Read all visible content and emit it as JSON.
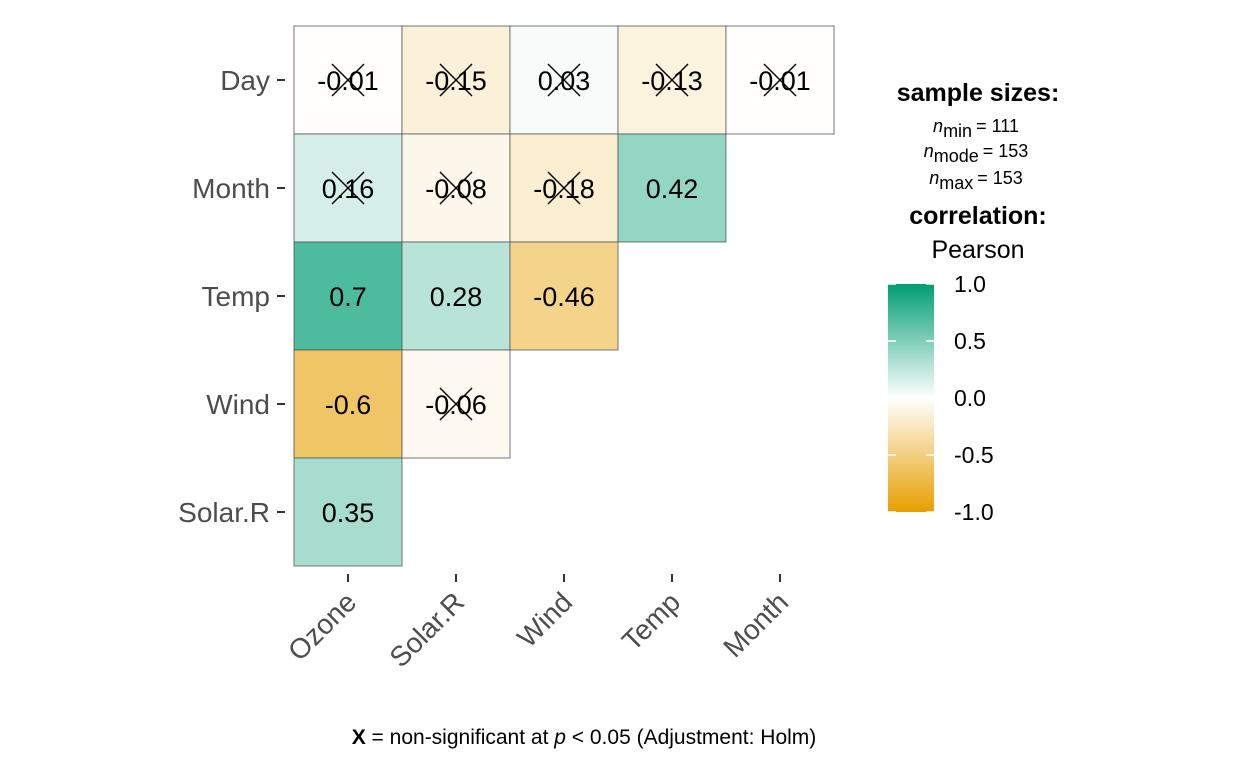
{
  "chart_data": {
    "type": "heatmap",
    "x_categories": [
      "Ozone",
      "Solar.R",
      "Wind",
      "Temp",
      "Month"
    ],
    "y_categories": [
      "Day",
      "Month",
      "Temp",
      "Wind",
      "Solar.R"
    ],
    "cells": [
      {
        "x": "Ozone",
        "y": "Day",
        "value": -0.01,
        "label": "-0.01",
        "non_significant": true
      },
      {
        "x": "Solar.R",
        "y": "Day",
        "value": -0.15,
        "label": "-0.15",
        "non_significant": true
      },
      {
        "x": "Wind",
        "y": "Day",
        "value": 0.03,
        "label": "0.03",
        "non_significant": true
      },
      {
        "x": "Temp",
        "y": "Day",
        "value": -0.13,
        "label": "-0.13",
        "non_significant": true
      },
      {
        "x": "Month",
        "y": "Day",
        "value": -0.01,
        "label": "-0.01",
        "non_significant": true
      },
      {
        "x": "Ozone",
        "y": "Month",
        "value": 0.16,
        "label": "0.16",
        "non_significant": true
      },
      {
        "x": "Solar.R",
        "y": "Month",
        "value": -0.08,
        "label": "-0.08",
        "non_significant": true
      },
      {
        "x": "Wind",
        "y": "Month",
        "value": -0.18,
        "label": "-0.18",
        "non_significant": true
      },
      {
        "x": "Temp",
        "y": "Month",
        "value": 0.42,
        "label": "0.42",
        "non_significant": false
      },
      {
        "x": "Ozone",
        "y": "Temp",
        "value": 0.7,
        "label": "0.7",
        "non_significant": false
      },
      {
        "x": "Solar.R",
        "y": "Temp",
        "value": 0.28,
        "label": "0.28",
        "non_significant": false
      },
      {
        "x": "Wind",
        "y": "Temp",
        "value": -0.46,
        "label": "-0.46",
        "non_significant": false
      },
      {
        "x": "Ozone",
        "y": "Wind",
        "value": -0.6,
        "label": "-0.6",
        "non_significant": false
      },
      {
        "x": "Solar.R",
        "y": "Wind",
        "value": -0.06,
        "label": "-0.06",
        "non_significant": true
      },
      {
        "x": "Ozone",
        "y": "Solar.R",
        "value": 0.35,
        "label": "0.35",
        "non_significant": false
      }
    ],
    "color_scale": {
      "low": "#E69F00",
      "mid": "#FFFFFF",
      "high": "#009E73",
      "limits": [
        -1.0,
        1.0
      ],
      "ticks": [
        1.0,
        0.5,
        0.0,
        -0.5,
        -1.0
      ],
      "tick_labels": [
        "1.0",
        "0.5",
        "0.0",
        "-0.5",
        "-1.0"
      ]
    },
    "legend": {
      "sample_sizes_title": "sample sizes:",
      "n_min_sub": "min",
      "n_min_value": "= 111",
      "n_mode_sub": "mode",
      "n_mode_value": "= 153",
      "n_max_sub": "max",
      "n_max_value": "= 153",
      "n_symbol": "n",
      "correlation_title": "correlation:",
      "correlation_method": "Pearson",
      "placement": "right"
    },
    "caption": {
      "x_mark": "X",
      "part1": " = non-significant at ",
      "p_symbol": "p",
      "part2": " < 0.05 (Adjustment: Holm)"
    }
  }
}
